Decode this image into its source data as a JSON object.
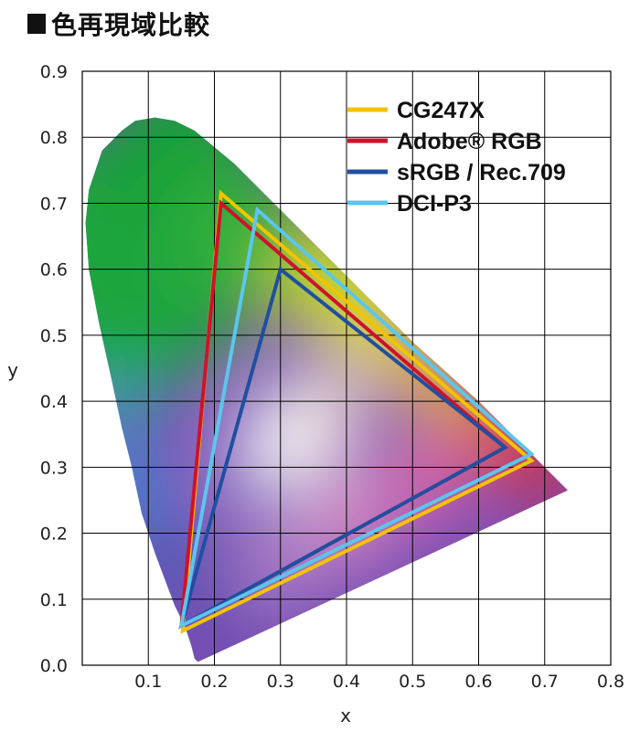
{
  "header": {
    "title": "色再現域比較"
  },
  "colors": {
    "CG247X": "#f3c300",
    "Adobe RGB": "#d0112b",
    "sRGB / Rec.709": "#1f4fa0",
    "DCI-P3": "#5bc6ee",
    "grid": "#000000"
  },
  "chart_data": {
    "type": "scatter",
    "title": "色再現域比較",
    "xlabel": "x",
    "ylabel": "y",
    "xlim": [
      0.0,
      0.8
    ],
    "ylim": [
      0.0,
      0.9
    ],
    "x_ticks": [
      "0.1",
      "0.2",
      "0.3",
      "0.4",
      "0.5",
      "0.6",
      "0.7",
      "0.8"
    ],
    "y_ticks": [
      "0.0",
      "0.1",
      "0.2",
      "0.3",
      "0.4",
      "0.5",
      "0.6",
      "0.7",
      "0.8",
      "0.9"
    ],
    "grid": true,
    "legend_position": "top-right",
    "series": [
      {
        "name": "CG247X",
        "color": "#f3c300",
        "points": [
          [
            0.21,
            0.715
          ],
          [
            0.68,
            0.31
          ],
          [
            0.152,
            0.052
          ]
        ]
      },
      {
        "name": "Adobe® RGB",
        "color": "#d0112b",
        "points": [
          [
            0.21,
            0.7
          ],
          [
            0.64,
            0.33
          ],
          [
            0.15,
            0.06
          ]
        ]
      },
      {
        "name": "sRGB / Rec.709",
        "color": "#1f4fa0",
        "points": [
          [
            0.3,
            0.6
          ],
          [
            0.64,
            0.33
          ],
          [
            0.15,
            0.06
          ]
        ]
      },
      {
        "name": "DCI-P3",
        "color": "#5bc6ee",
        "points": [
          [
            0.265,
            0.69
          ],
          [
            0.68,
            0.32
          ],
          [
            0.15,
            0.06
          ]
        ]
      }
    ],
    "locus": [
      [
        0.175,
        0.005
      ],
      [
        0.17,
        0.01
      ],
      [
        0.165,
        0.03
      ],
      [
        0.155,
        0.06
      ],
      [
        0.14,
        0.09
      ],
      [
        0.125,
        0.13
      ],
      [
        0.11,
        0.17
      ],
      [
        0.09,
        0.23
      ],
      [
        0.075,
        0.3
      ],
      [
        0.06,
        0.36
      ],
      [
        0.045,
        0.43
      ],
      [
        0.025,
        0.52
      ],
      [
        0.01,
        0.6
      ],
      [
        0.005,
        0.67
      ],
      [
        0.01,
        0.72
      ],
      [
        0.03,
        0.78
      ],
      [
        0.06,
        0.81
      ],
      [
        0.08,
        0.825
      ],
      [
        0.11,
        0.83
      ],
      [
        0.14,
        0.825
      ],
      [
        0.17,
        0.81
      ],
      [
        0.23,
        0.76
      ],
      [
        0.3,
        0.69
      ],
      [
        0.4,
        0.59
      ],
      [
        0.5,
        0.49
      ],
      [
        0.6,
        0.4
      ],
      [
        0.68,
        0.32
      ],
      [
        0.735,
        0.265
      ]
    ]
  }
}
